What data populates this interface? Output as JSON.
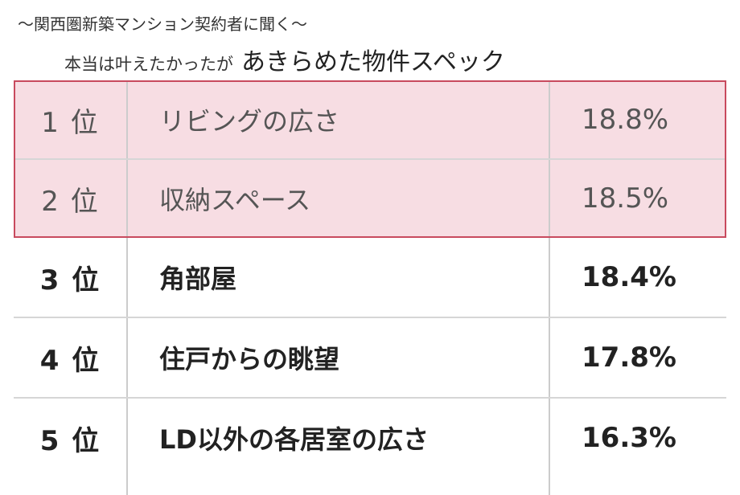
{
  "heading": {
    "subtitle": "〜関西圏新築マンション契約者に聞く〜",
    "title_small": "本当は叶えたかったが",
    "title_large": "あきらめた物件スペック"
  },
  "table": {
    "rows": [
      {
        "rank": "1 位",
        "item": "リビングの広さ",
        "percent": "18.8%",
        "highlight": true
      },
      {
        "rank": "2 位",
        "item": "収納スペース",
        "percent": "18.5%",
        "highlight": true
      },
      {
        "rank": "3 位",
        "item": "角部屋",
        "percent": "18.4%",
        "highlight": false
      },
      {
        "rank": "4 位",
        "item": "住戸からの眺望",
        "percent": "17.8%",
        "highlight": false
      },
      {
        "rank": "5 位",
        "item": "LD以外の各居室の広さ",
        "percent": "16.3%",
        "highlight": false
      }
    ]
  },
  "colors": {
    "highlight_fill": "#f7dde3",
    "highlight_border": "#c84a5e",
    "grid_line": "#d6d6d6"
  }
}
